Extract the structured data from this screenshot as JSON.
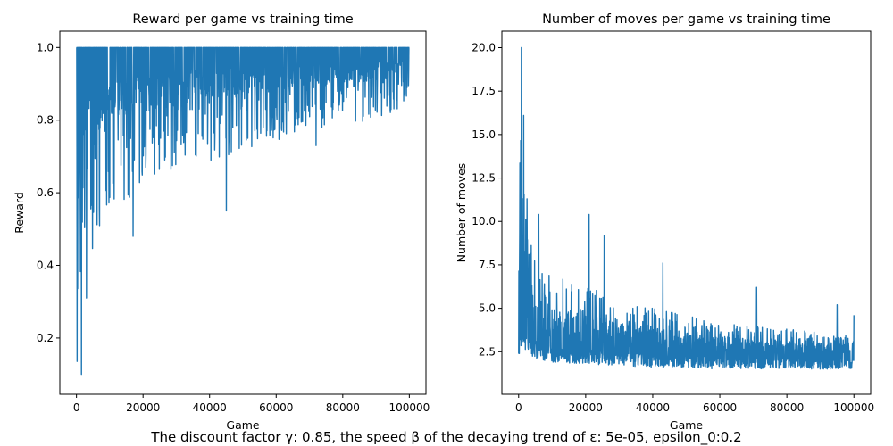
{
  "suptitle": "The discount factor γ: 0.85, the speed β of the decaying trend of ε: 5e-05, epsilon_0:0.2",
  "colors": {
    "series": "#1f77b4",
    "axes": "#000000",
    "background": "#ffffff"
  },
  "chart_data": [
    {
      "type": "line",
      "title": "Reward per game vs training time",
      "xlabel": "Game",
      "ylabel": "Reward",
      "xlim": [
        -5000,
        105000
      ],
      "ylim": [
        0.045,
        1.045
      ],
      "xticks": [
        0,
        20000,
        40000,
        60000,
        80000,
        100000
      ],
      "xtick_labels": [
        "0",
        "20000",
        "40000",
        "60000",
        "80000",
        "100000"
      ],
      "yticks": [
        0.2,
        0.4,
        0.6,
        0.8,
        1.0
      ],
      "ytick_labels": [
        "0.2",
        "0.4",
        "0.6",
        "0.8",
        "1.0"
      ],
      "grid": false,
      "n_games": 100000,
      "series": [
        {
          "values_description": "noisy per-game reward; max 1.0 throughout",
          "upper": {
            "x": [
              0,
              100000
            ],
            "y": [
              1.0,
              1.0
            ]
          },
          "lower": {
            "x": [
              0,
              500,
              1000,
              2000,
              3000,
              5000,
              8000,
              10000,
              15000,
              20000,
              25000,
              30000,
              35000,
              40000,
              45000,
              50000,
              55000,
              60000,
              65000,
              70000,
              75000,
              80000,
              85000,
              90000,
              95000,
              100000
            ],
            "y": [
              0.07,
              0.1,
              0.25,
              0.35,
              0.4,
              0.45,
              0.5,
              0.55,
              0.58,
              0.6,
              0.62,
              0.64,
              0.66,
              0.68,
              0.7,
              0.72,
              0.73,
              0.74,
              0.75,
              0.76,
              0.77,
              0.78,
              0.79,
              0.8,
              0.82,
              0.85
            ]
          },
          "dense": {
            "x": [
              0,
              1000,
              2000,
              5000,
              10000,
              20000,
              30000,
              40000,
              50000,
              60000,
              70000,
              80000,
              90000,
              100000
            ],
            "y": [
              0.55,
              0.62,
              0.7,
              0.76,
              0.8,
              0.82,
              0.84,
              0.86,
              0.87,
              0.88,
              0.89,
              0.9,
              0.91,
              0.92
            ]
          },
          "spikes": [
            {
              "x": 45000,
              "y": 0.55
            },
            {
              "x": 17000,
              "y": 0.48
            },
            {
              "x": 3000,
              "y": 0.31
            },
            {
              "x": 1500,
              "y": 0.1
            },
            {
              "x": 72000,
              "y": 0.73
            }
          ]
        }
      ]
    },
    {
      "type": "line",
      "title": "Number of moves per game vs training time",
      "xlabel": "Game",
      "ylabel": "Number of moves",
      "xlim": [
        -5000,
        105000
      ],
      "ylim": [
        0.05,
        20.95
      ],
      "xticks": [
        0,
        20000,
        40000,
        60000,
        80000,
        100000
      ],
      "xtick_labels": [
        "0",
        "20000",
        "40000",
        "60000",
        "80000",
        "100000"
      ],
      "yticks": [
        2.5,
        5.0,
        7.5,
        10.0,
        12.5,
        15.0,
        17.5,
        20.0
      ],
      "ytick_labels": [
        "2.5",
        "5.0",
        "7.5",
        "10.0",
        "12.5",
        "15.0",
        "17.5",
        "20.0"
      ],
      "grid": false,
      "n_games": 100000,
      "series": [
        {
          "values_description": "noisy per-game move count; peak 20 near start, decays to ~2",
          "upper": {
            "x": [
              0,
              1000,
              2000,
              3000,
              5000,
              8000,
              10000,
              15000,
              20000,
              25000,
              30000,
              35000,
              40000,
              50000,
              60000,
              70000,
              80000,
              90000,
              100000
            ],
            "y": [
              16.0,
              14.0,
              11.0,
              9.0,
              8.0,
              7.5,
              7.0,
              6.5,
              6.2,
              6.0,
              5.5,
              5.2,
              5.0,
              4.6,
              4.2,
              4.0,
              3.8,
              3.6,
              3.4
            ]
          },
          "lower": {
            "x": [
              0,
              1000,
              2000,
              5000,
              10000,
              20000,
              40000,
              60000,
              80000,
              100000
            ],
            "y": [
              1.0,
              3.2,
              2.6,
              2.1,
              1.9,
              1.8,
              1.6,
              1.5,
              1.5,
              1.5
            ]
          },
          "dense": {
            "x": [
              0,
              1000,
              3000,
              5000,
              10000,
              20000,
              40000,
              60000,
              80000,
              100000
            ],
            "y": [
              5.0,
              4.6,
              4.0,
              3.6,
              3.2,
              3.0,
              2.7,
              2.5,
              2.4,
              2.3
            ]
          },
          "spikes": [
            {
              "x": 800,
              "y": 20.0
            },
            {
              "x": 1500,
              "y": 16.1
            },
            {
              "x": 2500,
              "y": 11.3
            },
            {
              "x": 6000,
              "y": 10.4
            },
            {
              "x": 21000,
              "y": 10.4
            },
            {
              "x": 25500,
              "y": 9.2
            },
            {
              "x": 43000,
              "y": 7.6
            },
            {
              "x": 71000,
              "y": 6.2
            },
            {
              "x": 95000,
              "y": 5.2
            },
            {
              "x": 100000,
              "y": 4.6
            }
          ]
        }
      ]
    }
  ]
}
